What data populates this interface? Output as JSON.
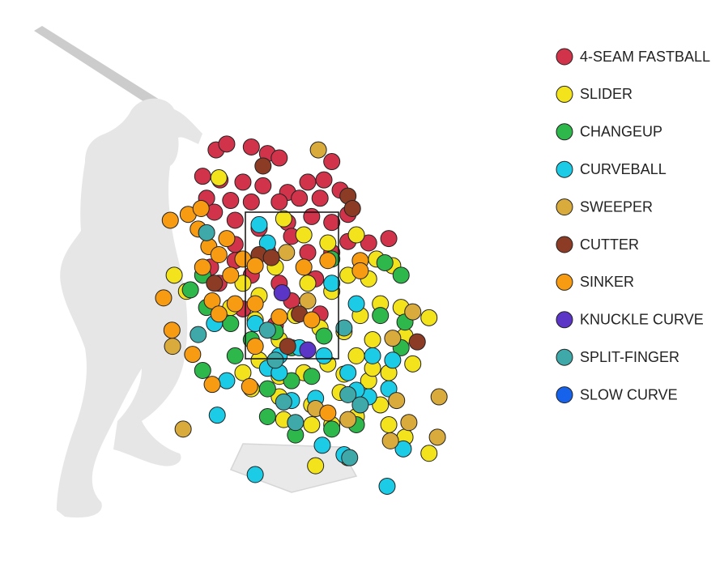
{
  "chart_data": {
    "type": "scatter",
    "xlim": [
      -3,
      3
    ],
    "ylim": [
      -0.5,
      5.5
    ],
    "series": [
      {
        "name": "4-SEAM FASTBALL",
        "color": "#d1334b",
        "x": [
          -1.35,
          -1.16,
          -0.72,
          -0.43,
          -0.22,
          0.72,
          -1.59,
          -1.28,
          -0.87,
          -0.51,
          -0.07,
          0.29,
          0.58,
          0.87,
          -1.52,
          -1.09,
          -0.72,
          -0.22,
          0.14,
          0.51,
          1.01,
          -1.38,
          -1.01,
          -0.58,
          -0.07,
          0.36,
          0.72,
          1.38,
          1.74,
          1.01,
          -1.01,
          -1.45,
          -1.01,
          -0.43,
          0,
          0.29,
          0.72,
          -1.3,
          -0.72,
          -0.22,
          0.43,
          -0.87,
          0,
          0.51,
          -0.29
        ],
        "values": [
          4.35,
          4.43,
          4.39,
          4.3,
          4.24,
          4.19,
          3.99,
          3.94,
          3.91,
          3.86,
          3.77,
          3.91,
          3.94,
          3.8,
          3.69,
          3.66,
          3.64,
          3.64,
          3.69,
          3.69,
          3.47,
          3.5,
          3.39,
          3.28,
          3.36,
          3.44,
          3.36,
          3.08,
          3.14,
          3.1,
          3.06,
          2.75,
          2.84,
          2.97,
          3.17,
          2.95,
          2.95,
          2.53,
          2.64,
          2.53,
          2.59,
          2.18,
          2.29,
          2.11,
          1.96
        ]
      },
      {
        "name": "SLIDER",
        "color": "#f2e31d",
        "x": [
          -0.14,
          0.22,
          0.65,
          1.16,
          1.52,
          1.81,
          1.01,
          1.38,
          0.72,
          0.29,
          -0.29,
          -0.58,
          -0.87,
          -1.09,
          -0.65,
          -0.22,
          0.07,
          0.51,
          0.94,
          1.23,
          1.59,
          1.96,
          2.46,
          2.03,
          1.45,
          1.16,
          0.65,
          0.22,
          -0.22,
          -0.58,
          -0.87,
          -0.72,
          -0.22,
          0.36,
          0.87,
          1.38,
          1.74,
          2.17,
          1.59,
          1.16,
          0.72,
          0.36,
          -0.14,
          1.74,
          2.03,
          2.46,
          1.01,
          0.43,
          -2.1,
          -1.88,
          -1.3,
          1.45,
          0.94
        ],
        "values": [
          3.41,
          3.19,
          3.08,
          3.19,
          2.86,
          2.77,
          2.64,
          2.59,
          2.42,
          2.53,
          2.75,
          2.36,
          2.53,
          2.2,
          2.03,
          1.76,
          2.09,
          1.92,
          1.87,
          2.09,
          2.25,
          2.2,
          2.06,
          1.81,
          1.76,
          1.54,
          1.43,
          1.31,
          1.26,
          1.48,
          1.31,
          1.09,
          0.98,
          0.87,
          1.04,
          1.2,
          1.31,
          1.43,
          0.87,
          0.71,
          0.6,
          0.6,
          0.67,
          0.6,
          0.43,
          0.21,
          0.15,
          0.04,
          2.64,
          2.42,
          3.97,
          1.37,
          1.29
        ]
      },
      {
        "name": "CHANGEUP",
        "color": "#2eb84b",
        "x": [
          1.67,
          1.96,
          0.72,
          -1.81,
          -1.59,
          -1.52,
          -1.09,
          -0.72,
          -0.29,
          0,
          0.58,
          1.59,
          1.96,
          -1.59,
          -0.43,
          0,
          0.36,
          -0.43,
          0.07,
          0.72,
          1.16,
          -1.01,
          2.03
        ],
        "values": [
          2.81,
          2.64,
          2.86,
          2.44,
          2.64,
          2.2,
          1.98,
          1.76,
          1.87,
          1.65,
          1.81,
          2.09,
          1.65,
          1.34,
          1.09,
          1.2,
          1.26,
          0.71,
          0.46,
          0.54,
          0.6,
          1.54,
          2.0
        ]
      },
      {
        "name": "CURVEBALL",
        "color": "#1ccbe6",
        "x": [
          -0.58,
          -0.43,
          0.72,
          1.16,
          -0.65,
          -0.22,
          -0.43,
          0.14,
          0.58,
          1.01,
          1.45,
          1.81,
          1.38,
          1.74,
          -0.22,
          0,
          0.43,
          1.16,
          -1.33,
          -1.16,
          0.55,
          0.94,
          2.0,
          -0.65,
          1.71,
          -1.38
        ],
        "values": [
          3.33,
          3.08,
          2.53,
          2.25,
          1.98,
          1.54,
          1.37,
          1.65,
          1.54,
          1.31,
          1.54,
          1.48,
          0.98,
          1.09,
          1.31,
          0.93,
          0.96,
          1.07,
          0.73,
          1.2,
          0.32,
          0.19,
          0.27,
          -0.08,
          -0.24,
          1.98
        ]
      },
      {
        "name": "SWEEPER",
        "color": "#d9aa3c",
        "x": [
          0.48,
          -0.09,
          2.17,
          1.81,
          1.88,
          2.1,
          2.61,
          2.64,
          1.77,
          -1.94,
          -2.13,
          0.43,
          1.01,
          0.29
        ],
        "values": [
          4.35,
          2.95,
          2.14,
          1.78,
          0.93,
          0.63,
          0.43,
          0.98,
          0.38,
          0.54,
          1.67,
          0.82,
          0.67,
          2.29
        ]
      },
      {
        "name": "CUTTER",
        "color": "#8c3b25",
        "x": [
          -0.51,
          1.01,
          1.09,
          -0.58,
          -0.36,
          0.14,
          -0.07,
          2.25,
          -1.38
        ],
        "values": [
          4.13,
          3.72,
          3.55,
          2.92,
          2.88,
          2.11,
          1.67,
          1.73,
          2.53
        ]
      },
      {
        "name": "SINKER",
        "color": "#f79b12",
        "x": [
          -2.17,
          -1.85,
          -1.62,
          -1.67,
          -1.48,
          -1.16,
          -1.3,
          -1.09,
          -0.87,
          -0.65,
          0.22,
          0.65,
          1.23,
          -1.59,
          -2.29,
          -1.42,
          -1.3,
          -1.01,
          -0.65,
          -0.22,
          -2.14,
          -1.77,
          -0.65,
          -1.42,
          -0.75,
          0.65,
          1.23,
          0.36
        ],
        "values": [
          3.39,
          3.47,
          3.55,
          3.27,
          3.03,
          3.14,
          2.92,
          2.64,
          2.86,
          2.77,
          2.75,
          2.84,
          2.84,
          2.75,
          2.33,
          2.29,
          2.11,
          2.25,
          2.25,
          2.07,
          1.89,
          1.56,
          1.67,
          1.15,
          1.12,
          0.76,
          2.7,
          2.03
        ]
      },
      {
        "name": "KNUCKLE CURVE",
        "color": "#5b36c6",
        "x": [
          -0.17,
          0.29
        ],
        "values": [
          2.4,
          1.62
        ]
      },
      {
        "name": "SPLIT-FINGER",
        "color": "#3fa8a8",
        "x": [
          -1.52,
          -1.67,
          -0.43,
          0.94,
          -0.14,
          0.07,
          1.01,
          1.23,
          1.04,
          -0.29
        ],
        "values": [
          3.22,
          1.83,
          1.89,
          1.92,
          0.91,
          0.63,
          1.01,
          0.87,
          0.15,
          1.48
        ]
      },
      {
        "name": "SLOW CURVE",
        "color": "#1762ea",
        "x": [],
        "values": []
      }
    ]
  }
}
